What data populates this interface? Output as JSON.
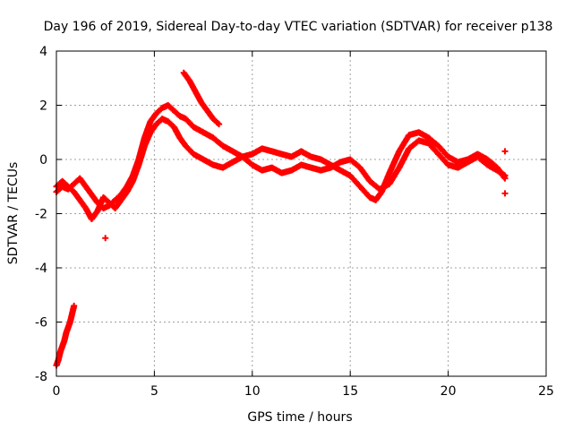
{
  "chart_data": {
    "type": "scatter",
    "title": "Day 196 of 2019, Sidereal Day-to-day VTEC variation (SDTVAR) for receiver p138",
    "xlabel": "GPS time / hours",
    "ylabel": "SDTVAR / TECUs",
    "xlim": [
      0,
      25
    ],
    "ylim": [
      -8,
      4
    ],
    "xticks": [
      0,
      5,
      10,
      15,
      20,
      25
    ],
    "yticks": [
      -8,
      -6,
      -4,
      -2,
      0,
      2,
      4
    ],
    "grid": true,
    "legend": "none",
    "marker": "plus",
    "color": "#ff0000",
    "series": [
      {
        "name": "track-a",
        "x": [
          0.0,
          0.3,
          0.6,
          0.9,
          1.2,
          1.5,
          1.8,
          2.1,
          2.4,
          2.7,
          3.0,
          3.3,
          3.6,
          3.9,
          4.2,
          4.5,
          4.8,
          5.1,
          5.4,
          5.7,
          6.0,
          6.3,
          6.6,
          7.0,
          7.5,
          8.0,
          8.5,
          9.0,
          9.5,
          10.0,
          10.5,
          11.0,
          11.5,
          12.0,
          12.5,
          13.0,
          13.5,
          14.0,
          14.5,
          15.0,
          15.5,
          16.0,
          16.3,
          16.6,
          17.0,
          17.5,
          18.0,
          18.5,
          19.0,
          19.5,
          20.0,
          20.5,
          21.0,
          21.5,
          22.0,
          22.5,
          22.9
        ],
        "y": [
          -1.2,
          -1.0,
          -1.1,
          -0.9,
          -0.7,
          -1.0,
          -1.3,
          -1.6,
          -1.8,
          -1.7,
          -1.5,
          -1.3,
          -1.0,
          -0.6,
          0.0,
          0.8,
          1.4,
          1.7,
          1.9,
          2.0,
          1.8,
          1.6,
          1.5,
          1.2,
          1.0,
          0.8,
          0.5,
          0.3,
          0.1,
          0.2,
          0.4,
          0.3,
          0.2,
          0.1,
          0.3,
          0.1,
          0.0,
          -0.2,
          -0.4,
          -0.6,
          -1.0,
          -1.4,
          -1.5,
          -1.2,
          -0.5,
          0.3,
          0.9,
          1.0,
          0.8,
          0.5,
          0.1,
          -0.1,
          0.0,
          0.2,
          0.0,
          -0.3,
          -0.7
        ]
      },
      {
        "name": "track-b",
        "x": [
          0.0,
          0.3,
          0.6,
          0.9,
          1.2,
          1.5,
          1.8,
          2.1,
          2.4,
          2.7,
          3.0,
          3.3,
          3.6,
          3.9,
          4.2,
          4.5,
          4.8,
          5.1,
          5.4,
          5.7,
          6.0,
          6.3,
          6.6,
          7.0,
          7.5,
          8.0,
          8.5,
          9.0,
          9.5,
          10.0,
          10.5,
          11.0,
          11.5,
          12.0,
          12.5,
          13.0,
          13.5,
          14.0,
          14.5,
          15.0,
          15.5,
          16.0,
          16.5,
          17.0,
          17.5,
          18.0,
          18.5,
          19.0,
          19.5,
          20.0,
          20.5,
          21.0,
          21.5,
          22.0,
          22.5,
          22.9
        ],
        "y": [
          -1.0,
          -0.8,
          -1.0,
          -1.2,
          -1.5,
          -1.8,
          -2.2,
          -1.9,
          -1.4,
          -1.6,
          -1.8,
          -1.5,
          -1.2,
          -0.8,
          -0.2,
          0.5,
          1.0,
          1.3,
          1.5,
          1.4,
          1.2,
          0.8,
          0.5,
          0.2,
          0.0,
          -0.2,
          -0.3,
          -0.1,
          0.1,
          -0.2,
          -0.4,
          -0.3,
          -0.5,
          -0.4,
          -0.2,
          -0.3,
          -0.4,
          -0.3,
          -0.1,
          0.0,
          -0.3,
          -0.8,
          -1.1,
          -0.9,
          -0.3,
          0.4,
          0.7,
          0.6,
          0.2,
          -0.2,
          -0.3,
          -0.1,
          0.1,
          -0.2,
          -0.4,
          -0.6
        ]
      },
      {
        "name": "track-c",
        "x": [
          6.5,
          6.8,
          7.1,
          7.4,
          7.7,
          8.0,
          8.3
        ],
        "y": [
          3.2,
          2.9,
          2.5,
          2.1,
          1.8,
          1.5,
          1.3
        ]
      },
      {
        "name": "track-d",
        "x": [
          0.0,
          0.1,
          0.2,
          0.3,
          0.4,
          0.5,
          0.6,
          0.7,
          0.8,
          0.9
        ],
        "y": [
          -7.6,
          -7.4,
          -7.1,
          -6.9,
          -6.7,
          -6.4,
          -6.2,
          -6.0,
          -5.7,
          -5.4
        ]
      }
    ],
    "isolated_points": [
      {
        "x": 2.5,
        "y": -2.9
      },
      {
        "x": 22.9,
        "y": 0.3
      },
      {
        "x": 22.9,
        "y": -1.25
      }
    ]
  }
}
